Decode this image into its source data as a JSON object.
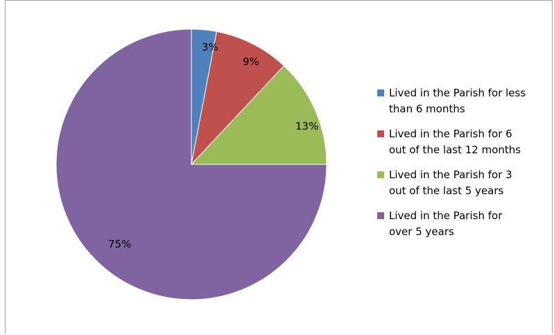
{
  "chart_data": {
    "type": "pie",
    "start_angle_deg": 0,
    "direction": "clockwise",
    "legend_position": "right",
    "slices": [
      {
        "label": "Lived in the Parish for less than 6 months",
        "value": 3,
        "display": "3%",
        "color": "#4F81BD"
      },
      {
        "label": "Lived in the Parish for 6 out of the last 12 months",
        "value": 9,
        "display": "9%",
        "color": "#C0504D"
      },
      {
        "label": "Lived in the Parish for 3 out of the last 5 years",
        "value": 13,
        "display": "13%",
        "color": "#9BBB59"
      },
      {
        "label": "Lived in the Parish for over 5 years",
        "value": 75,
        "display": "75%",
        "color": "#8064A2"
      }
    ],
    "legend": {
      "lines": [
        [
          "Lived in the Parish for less",
          "than 6 months"
        ],
        [
          "Lived in the Parish for 6",
          "out of the last 12 months"
        ],
        [
          "Lived in the Parish for 3",
          "out of the last 5 years"
        ],
        [
          "Lived in the Parish for",
          "over 5 years"
        ]
      ]
    }
  }
}
